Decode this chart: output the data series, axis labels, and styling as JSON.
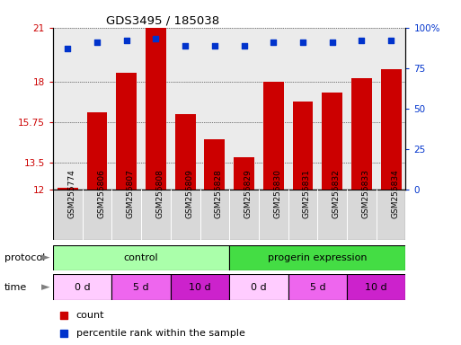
{
  "title": "GDS3495 / 185038",
  "samples": [
    "GSM255774",
    "GSM255806",
    "GSM255807",
    "GSM255808",
    "GSM255809",
    "GSM255828",
    "GSM255829",
    "GSM255830",
    "GSM255831",
    "GSM255832",
    "GSM255833",
    "GSM255834"
  ],
  "bar_values": [
    12.1,
    16.3,
    18.5,
    21.0,
    16.2,
    14.8,
    13.8,
    18.0,
    16.9,
    17.4,
    18.2,
    18.7
  ],
  "dot_values": [
    87,
    91,
    92,
    93,
    89,
    89,
    89,
    91,
    91,
    91,
    92,
    92
  ],
  "ylim_left": [
    12,
    21
  ],
  "ylim_right": [
    0,
    100
  ],
  "yticks_left": [
    12,
    13.5,
    15.75,
    18,
    21
  ],
  "ytick_labels_left": [
    "12",
    "13.5",
    "15.75",
    "18",
    "21"
  ],
  "yticks_right": [
    0,
    25,
    50,
    75,
    100
  ],
  "ytick_labels_right": [
    "0",
    "25",
    "50",
    "75",
    "100%"
  ],
  "bar_color": "#cc0000",
  "dot_color": "#0033cc",
  "protocol_control_label": "control",
  "protocol_progerin_label": "progerin expression",
  "protocol_control_color": "#aaffaa",
  "protocol_progerin_color": "#44dd44",
  "time_groups": [
    [
      0,
      2,
      "0 d",
      "#ffccff"
    ],
    [
      2,
      4,
      "5 d",
      "#ee66ee"
    ],
    [
      4,
      6,
      "10 d",
      "#cc22cc"
    ],
    [
      6,
      8,
      "0 d",
      "#ffccff"
    ],
    [
      8,
      10,
      "5 d",
      "#ee66ee"
    ],
    [
      10,
      12,
      "10 d",
      "#cc22cc"
    ]
  ],
  "legend_count_label": "count",
  "legend_pct_label": "percentile rank within the sample",
  "control_n": 6,
  "progerin_n": 6,
  "tick_label_color_left": "#cc0000",
  "tick_label_color_right": "#0033cc",
  "col_bg_color": "#d8d8d8"
}
